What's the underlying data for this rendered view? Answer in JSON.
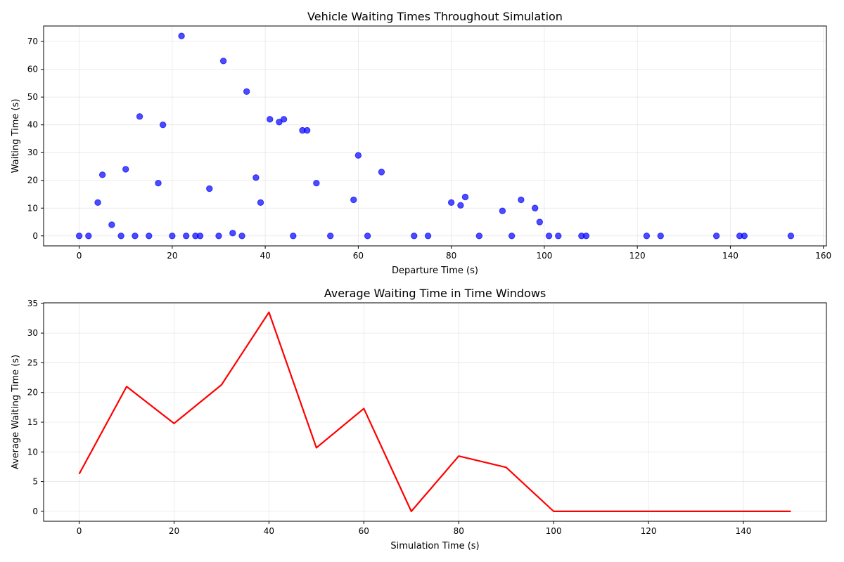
{
  "chart_data": [
    {
      "type": "scatter",
      "title": "Vehicle Waiting Times Throughout Simulation",
      "xlabel": "Departure Time (s)",
      "ylabel": "Waiting Time (s)",
      "xlim": [
        -7.65,
        160.65
      ],
      "ylim": [
        -3.6,
        75.6
      ],
      "xticks": [
        0,
        20,
        40,
        60,
        80,
        100,
        120,
        140,
        160
      ],
      "yticks": [
        0,
        10,
        20,
        30,
        40,
        50,
        60,
        70
      ],
      "grid": true,
      "color": "#0000ff",
      "points": [
        {
          "x": 0,
          "y": 0
        },
        {
          "x": 2,
          "y": 0
        },
        {
          "x": 4,
          "y": 12
        },
        {
          "x": 5,
          "y": 22
        },
        {
          "x": 7,
          "y": 4
        },
        {
          "x": 9,
          "y": 0
        },
        {
          "x": 10,
          "y": 24
        },
        {
          "x": 12,
          "y": 0
        },
        {
          "x": 13,
          "y": 43
        },
        {
          "x": 15,
          "y": 0
        },
        {
          "x": 17,
          "y": 19
        },
        {
          "x": 18,
          "y": 40
        },
        {
          "x": 20,
          "y": 0
        },
        {
          "x": 22,
          "y": 72
        },
        {
          "x": 23,
          "y": 0
        },
        {
          "x": 25,
          "y": 0
        },
        {
          "x": 26,
          "y": 0
        },
        {
          "x": 28,
          "y": 17
        },
        {
          "x": 30,
          "y": 0
        },
        {
          "x": 31,
          "y": 63
        },
        {
          "x": 33,
          "y": 1
        },
        {
          "x": 35,
          "y": 0
        },
        {
          "x": 36,
          "y": 52
        },
        {
          "x": 38,
          "y": 21
        },
        {
          "x": 39,
          "y": 12
        },
        {
          "x": 41,
          "y": 42
        },
        {
          "x": 43,
          "y": 41
        },
        {
          "x": 44,
          "y": 42
        },
        {
          "x": 46,
          "y": 0
        },
        {
          "x": 48,
          "y": 38
        },
        {
          "x": 49,
          "y": 38
        },
        {
          "x": 51,
          "y": 19
        },
        {
          "x": 54,
          "y": 0
        },
        {
          "x": 59,
          "y": 13
        },
        {
          "x": 60,
          "y": 29
        },
        {
          "x": 62,
          "y": 0
        },
        {
          "x": 65,
          "y": 23
        },
        {
          "x": 72,
          "y": 0
        },
        {
          "x": 75,
          "y": 0
        },
        {
          "x": 80,
          "y": 12
        },
        {
          "x": 82,
          "y": 11
        },
        {
          "x": 83,
          "y": 14
        },
        {
          "x": 86,
          "y": 0
        },
        {
          "x": 91,
          "y": 9
        },
        {
          "x": 93,
          "y": 0
        },
        {
          "x": 95,
          "y": 13
        },
        {
          "x": 98,
          "y": 10
        },
        {
          "x": 99,
          "y": 5
        },
        {
          "x": 101,
          "y": 0
        },
        {
          "x": 103,
          "y": 0
        },
        {
          "x": 108,
          "y": 0
        },
        {
          "x": 109,
          "y": 0
        },
        {
          "x": 122,
          "y": 0
        },
        {
          "x": 125,
          "y": 0
        },
        {
          "x": 137,
          "y": 0
        },
        {
          "x": 142,
          "y": 0
        },
        {
          "x": 143,
          "y": 0
        },
        {
          "x": 153,
          "y": 0
        }
      ]
    },
    {
      "type": "line",
      "title": "Average Waiting Time in Time Windows",
      "xlabel": "Simulation Time (s)",
      "ylabel": "Average Waiting Time (s)",
      "xlim": [
        -7.5,
        157.5
      ],
      "ylim": [
        -1.67,
        35.1
      ],
      "xticks": [
        0,
        20,
        40,
        60,
        80,
        100,
        120,
        140
      ],
      "yticks": [
        0,
        5,
        10,
        15,
        20,
        25,
        30,
        35
      ],
      "grid": true,
      "color": "#ff0000",
      "x": [
        0,
        10,
        20,
        30,
        40,
        50,
        60,
        70,
        80,
        90,
        100,
        110,
        120,
        130,
        140,
        150
      ],
      "y": [
        6.3,
        21.0,
        14.8,
        21.3,
        33.5,
        10.7,
        17.3,
        0.0,
        9.3,
        7.4,
        0.0,
        0.0,
        0.0,
        0.0,
        0.0,
        0.0
      ]
    }
  ]
}
